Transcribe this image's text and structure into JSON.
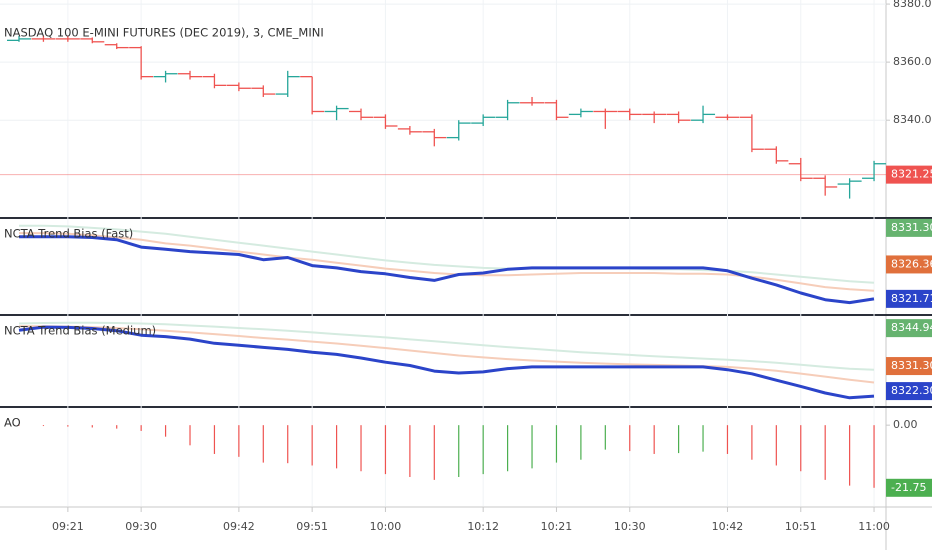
{
  "chart_data": [
    {
      "type": "ohlc",
      "title": "NASDAQ 100 E-MINI FUTURES (DEC 2019), 3, CME_MINI",
      "categories": [
        null,
        null,
        "09:21",
        null,
        null,
        "09:30",
        null,
        null,
        null,
        "09:42",
        null,
        null,
        "09:51",
        null,
        null,
        "10:00",
        null,
        null,
        null,
        "10:12",
        null,
        null,
        "10:21",
        null,
        null,
        "10:30",
        null,
        null,
        null,
        "10:42",
        null,
        null,
        "10:51",
        null,
        null,
        "11:00"
      ],
      "open": [
        8367.5,
        8368,
        8368,
        8368,
        8366,
        8365,
        8355,
        8356,
        8355,
        8352,
        8351,
        8349,
        8355,
        8343,
        8343,
        8341,
        8337,
        8336,
        8334,
        8339,
        8341,
        8346,
        8346,
        8342,
        8343,
        8343,
        8342,
        8342,
        8340,
        8341,
        8341,
        8330,
        8325,
        8320,
        8318,
        8320
      ],
      "high": [
        8369,
        8369,
        8369,
        8368.5,
        8366.5,
        8365.5,
        8357,
        8357,
        8356,
        8353,
        8352,
        8357,
        8355,
        8345,
        8344,
        8342,
        8338,
        8337,
        8340,
        8342,
        8347,
        8348,
        8347,
        8344,
        8344,
        8344,
        8343,
        8343,
        8345,
        8342,
        8342,
        8331,
        8327,
        8321,
        8320,
        8326
      ],
      "low": [
        8367,
        8367,
        8367,
        8366.5,
        8364.5,
        8354,
        8353,
        8354,
        8351,
        8350,
        8348,
        8348,
        8342,
        8340,
        8340,
        8337,
        8335,
        8331,
        8333,
        8338,
        8340,
        8345,
        8340,
        8341,
        8337,
        8340,
        8339,
        8339,
        8339,
        8340,
        8329,
        8325,
        8319,
        8314,
        8313,
        8319
      ],
      "close": [
        8368,
        8368,
        8368,
        8367,
        8365,
        8355,
        8356,
        8355,
        8352,
        8351,
        8349,
        8355,
        8343,
        8344,
        8341,
        8338,
        8336,
        8334,
        8339,
        8341,
        8346,
        8346,
        8341,
        8343,
        8343,
        8342,
        8342,
        8340,
        8342,
        8341,
        8330,
        8326,
        8320,
        8317,
        8319,
        8325
      ],
      "up_color": "#26a69a",
      "down_color": "#ef5350",
      "ylim": [
        8307,
        8381.4
      ],
      "yticks": [
        {
          "value": 8380,
          "label": "8380.00"
        },
        {
          "value": 8360,
          "label": "8360.00"
        },
        {
          "value": 8340,
          "label": "8340.00"
        }
      ],
      "price_line": {
        "value": 8321.25,
        "label": "8321.25",
        "color": "#ef5350"
      }
    },
    {
      "type": "line",
      "title": "NCTA Trend Bias (Fast)",
      "ylim": [
        8319.8,
        8332.5
      ],
      "series": [
        {
          "color": "#d5ebe0",
          "values": [
            8331.6,
            8331.6,
            8331.5,
            8331.3,
            8331.1,
            8330.8,
            8330.5,
            8330.1,
            8329.7,
            8329.3,
            8328.9,
            8328.5,
            8328.1,
            8327.7,
            8327.3,
            8326.9,
            8326.6,
            8326.3,
            8326.1,
            8325.9,
            8325.8,
            8325.8,
            8325.8,
            8325.8,
            8325.8,
            8325.8,
            8325.7,
            8325.7,
            8325.6,
            8325.5,
            8325.3,
            8325.0,
            8324.7,
            8324.4,
            8324.1,
            8323.9
          ]
        },
        {
          "color": "#f6cdb9",
          "values": [
            8330.6,
            8330.6,
            8330.5,
            8330.3,
            8330.0,
            8329.7,
            8329.2,
            8328.9,
            8328.5,
            8328.1,
            8327.7,
            8327.3,
            8327.0,
            8326.6,
            8326.2,
            8325.8,
            8325.5,
            8325.2,
            8325.0,
            8324.9,
            8324.9,
            8325.0,
            8325.1,
            8325.2,
            8325.2,
            8325.2,
            8325.2,
            8325.1,
            8325.1,
            8325.0,
            8324.7,
            8324.3,
            8323.8,
            8323.3,
            8323.0,
            8322.8
          ]
        },
        {
          "color": "#2b44c9",
          "values": [
            8330.1,
            8330.1,
            8330.1,
            8330.0,
            8329.7,
            8328.7,
            8328.4,
            8328.1,
            8327.9,
            8327.7,
            8327.0,
            8327.3,
            8326.2,
            8325.9,
            8325.4,
            8325.1,
            8324.6,
            8324.2,
            8325.0,
            8325.2,
            8325.7,
            8325.9,
            8325.9,
            8325.9,
            8325.9,
            8325.9,
            8325.9,
            8325.9,
            8325.9,
            8325.5,
            8324.5,
            8323.6,
            8322.5,
            8321.6,
            8321.2,
            8321.7
          ]
        }
      ],
      "price_labels": [
        {
          "value": 8331.3,
          "label": "8331.30",
          "color": "#66b36f"
        },
        {
          "value": 8326.36,
          "label": "8326.36",
          "color": "#e0703c"
        },
        {
          "value": 8321.71,
          "label": "8321.71",
          "color": "#2b44c9"
        }
      ]
    },
    {
      "type": "line",
      "title": "NCTA Trend Bias (Medium)",
      "ylim": [
        8317.3,
        8349.3
      ],
      "series": [
        {
          "color": "#d5ebe0",
          "values": [
            8346.6,
            8346.8,
            8346.9,
            8346.9,
            8346.8,
            8346.6,
            8346.3,
            8345.9,
            8345.5,
            8345.0,
            8344.5,
            8344.0,
            8343.4,
            8342.8,
            8342.2,
            8341.6,
            8340.9,
            8340.2,
            8339.5,
            8338.8,
            8338.1,
            8337.5,
            8336.9,
            8336.3,
            8335.8,
            8335.3,
            8334.8,
            8334.4,
            8334.0,
            8333.6,
            8333.1,
            8332.5,
            8331.8,
            8331.0,
            8330.3,
            8330.0
          ]
        },
        {
          "color": "#f6cdb9",
          "values": [
            8345.6,
            8345.6,
            8345.5,
            8345.3,
            8345.0,
            8344.5,
            8344.0,
            8343.4,
            8342.8,
            8342.1,
            8341.4,
            8340.8,
            8340.1,
            8339.4,
            8338.6,
            8337.8,
            8336.9,
            8336.0,
            8335.1,
            8334.4,
            8333.8,
            8333.3,
            8332.9,
            8332.5,
            8332.2,
            8331.9,
            8331.7,
            8331.5,
            8331.3,
            8331.0,
            8330.4,
            8329.6,
            8328.6,
            8327.5,
            8326.4,
            8325.4
          ]
        },
        {
          "color": "#2b44c9",
          "values": [
            8344.2,
            8345.3,
            8345.2,
            8344.8,
            8344.0,
            8342.4,
            8341.9,
            8341.0,
            8339.5,
            8338.8,
            8338.0,
            8337.3,
            8336.3,
            8335.5,
            8334.2,
            8332.7,
            8331.5,
            8329.5,
            8328.8,
            8329.2,
            8330.4,
            8331.0,
            8331.0,
            8331.0,
            8331.0,
            8331.0,
            8331.0,
            8331.0,
            8331.0,
            8330.0,
            8328.5,
            8326.2,
            8324.0,
            8321.6,
            8319.9,
            8320.5
          ]
        }
      ],
      "price_labels": [
        {
          "value": 8344.94,
          "label": "8344.94",
          "color": "#66b36f"
        },
        {
          "value": 8331.3,
          "label": "8331.30",
          "color": "#e0703c"
        },
        {
          "value": 8322.3,
          "label": "8322.30",
          "color": "#2b44c9"
        }
      ]
    },
    {
      "type": "histogram",
      "title": "AO",
      "ylim": [
        -28.07,
        5.96
      ],
      "values": [
        -0.2,
        -0.3,
        -0.5,
        -0.8,
        -1.2,
        -2,
        -4,
        -7,
        -10,
        -11,
        -13,
        -13.2,
        -14,
        -15,
        -16,
        -17,
        -18,
        -19,
        -18,
        -17,
        -16,
        -15,
        -13,
        -12,
        -8.5,
        -9,
        -10,
        -9.7,
        -9.2,
        -10,
        -12,
        -14,
        -16,
        -19,
        -21,
        -21.75
      ],
      "up_color": "#4caf50",
      "down_color": "#ef5350",
      "yticks": [
        {
          "value": 0,
          "label": "0.00"
        }
      ],
      "price_labels": [
        {
          "value": -21.75,
          "label": "-21.75",
          "color": "#4caf50"
        }
      ]
    }
  ]
}
